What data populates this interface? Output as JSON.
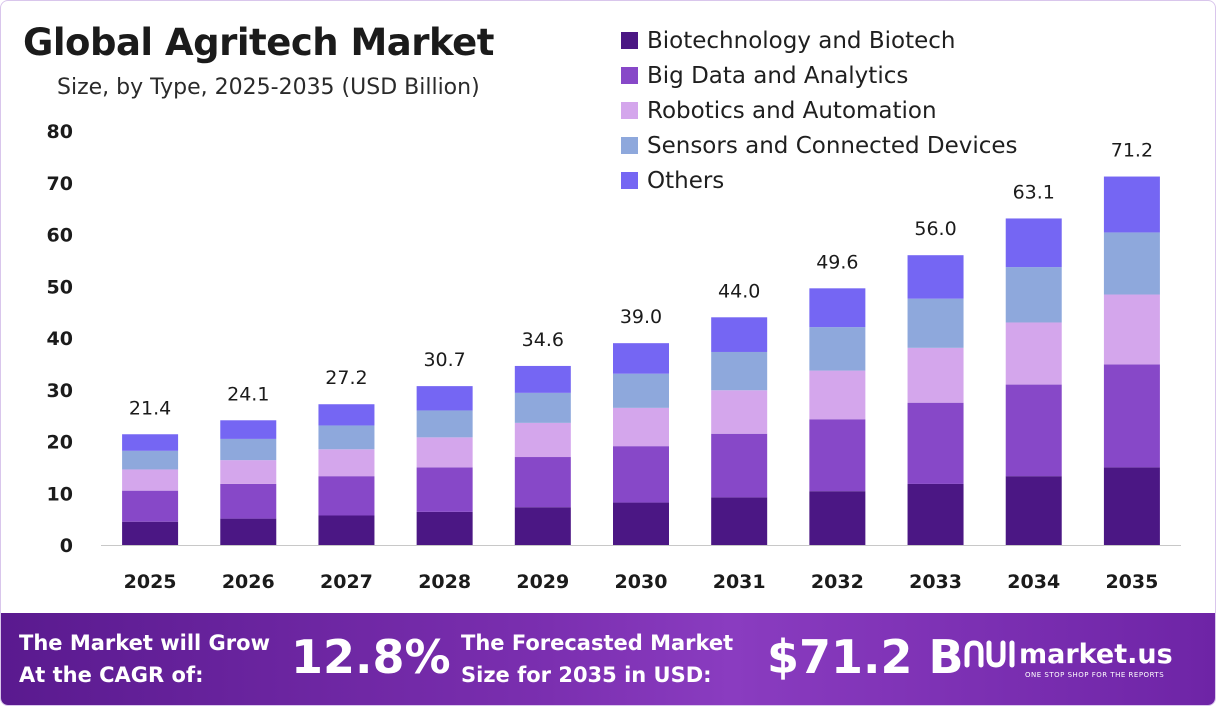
{
  "colors": {
    "biotech": "#4b1784",
    "bigdata": "#8748c8",
    "robotics": "#d4a6ec",
    "sensors": "#8ea8dc",
    "others": "#7566f3",
    "banner_start": "#5a1a8f",
    "banner_end": "#8a3cc0"
  },
  "chart_data": {
    "type": "bar",
    "stacked": true,
    "title": "Global Agritech Market",
    "subtitle": "Size, by Type, 2025-2035 (USD Billion)",
    "categories": [
      "2025",
      "2026",
      "2027",
      "2028",
      "2029",
      "2030",
      "2031",
      "2032",
      "2033",
      "2034",
      "2035"
    ],
    "totals": [
      21.4,
      24.1,
      27.2,
      30.7,
      34.6,
      39.0,
      44.0,
      49.6,
      56.0,
      63.1,
      71.2
    ],
    "total_labels": [
      "21.4",
      "24.1",
      "27.2",
      "30.7",
      "34.6",
      "39.0",
      "44.0",
      "49.6",
      "56.0",
      "63.1",
      "71.2"
    ],
    "series": [
      {
        "name": "Biotechnology and Biotech",
        "color": "#4b1784",
        "values": [
          4.5,
          5.1,
          5.7,
          6.4,
          7.3,
          8.2,
          9.2,
          10.4,
          11.8,
          13.3,
          15.0
        ]
      },
      {
        "name": "Big Data and Analytics",
        "color": "#8748c8",
        "values": [
          6.0,
          6.7,
          7.6,
          8.6,
          9.7,
          10.9,
          12.3,
          13.9,
          15.7,
          17.7,
          19.9
        ]
      },
      {
        "name": "Robotics and Automation",
        "color": "#d4a6ec",
        "values": [
          4.1,
          4.6,
          5.2,
          5.8,
          6.6,
          7.4,
          8.4,
          9.4,
          10.6,
          12.0,
          13.5
        ]
      },
      {
        "name": "Sensors and Connected Devices",
        "color": "#8ea8dc",
        "values": [
          3.6,
          4.1,
          4.6,
          5.2,
          5.8,
          6.6,
          7.4,
          8.4,
          9.5,
          10.7,
          12.0
        ]
      },
      {
        "name": "Others",
        "color": "#7566f3",
        "values": [
          3.2,
          3.6,
          4.1,
          4.7,
          5.2,
          5.9,
          6.7,
          7.5,
          8.4,
          9.4,
          10.8
        ]
      }
    ],
    "yticks": [
      "0",
      "10",
      "20",
      "30",
      "40",
      "50",
      "60",
      "70",
      "80"
    ],
    "ylim": [
      0,
      80
    ],
    "xlabel": "",
    "ylabel": "",
    "grid": false,
    "legend": "top-right"
  },
  "banner": {
    "cagr_line1": "The Market will Grow",
    "cagr_line2": "At the CAGR of:",
    "cagr_value": "12.8%",
    "forecast_line1": "The Forecasted Market",
    "forecast_line2": "Size for 2035 in USD:",
    "forecast_value": "$71.2 B",
    "brand_name": "market.us",
    "brand_tagline": "ONE STOP SHOP FOR THE REPORTS"
  }
}
